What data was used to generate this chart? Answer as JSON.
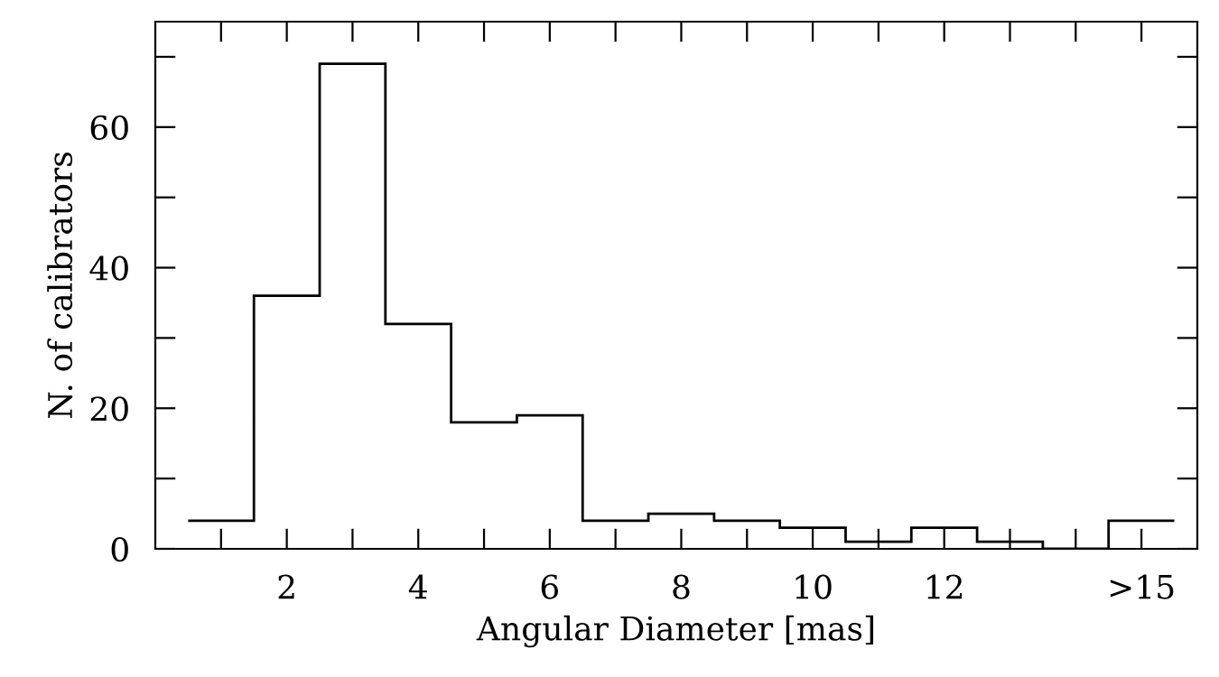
{
  "chart_data": {
    "type": "histogram",
    "xlabel": "Angular Diameter [mas]",
    "ylabel": "N. of calibrators",
    "bins": [
      0.5,
      1.5,
      2.5,
      3.5,
      4.5,
      5.5,
      6.5,
      7.5,
      8.5,
      9.5,
      10.5,
      11.5,
      12.5,
      13.5,
      14.5,
      15.5
    ],
    "values": [
      4,
      36,
      69,
      32,
      18,
      19,
      4,
      5,
      4,
      3,
      1,
      3,
      1,
      0,
      4
    ],
    "color": "#000000",
    "xlim": [
      0,
      15.85
    ],
    "ylim": [
      0,
      75
    ],
    "xticks": [
      {
        "value": 1,
        "label": null
      },
      2,
      {
        "value": 3,
        "label": null
      },
      4,
      {
        "value": 5,
        "label": null
      },
      6,
      {
        "value": 7,
        "label": null
      },
      8,
      {
        "value": 9,
        "label": null
      },
      10,
      {
        "value": 11,
        "label": null
      },
      12,
      {
        "value": 13,
        "label": null
      },
      {
        "value": 14,
        "label": null
      },
      {
        "value": 15,
        "label": ">15"
      }
    ],
    "yticks": [
      0,
      {
        "value": 10,
        "label": null
      },
      20,
      {
        "value": 30,
        "label": null
      },
      40,
      {
        "value": 50,
        "label": null
      },
      60,
      {
        "value": 70,
        "label": null
      }
    ],
    "grid": false
  }
}
